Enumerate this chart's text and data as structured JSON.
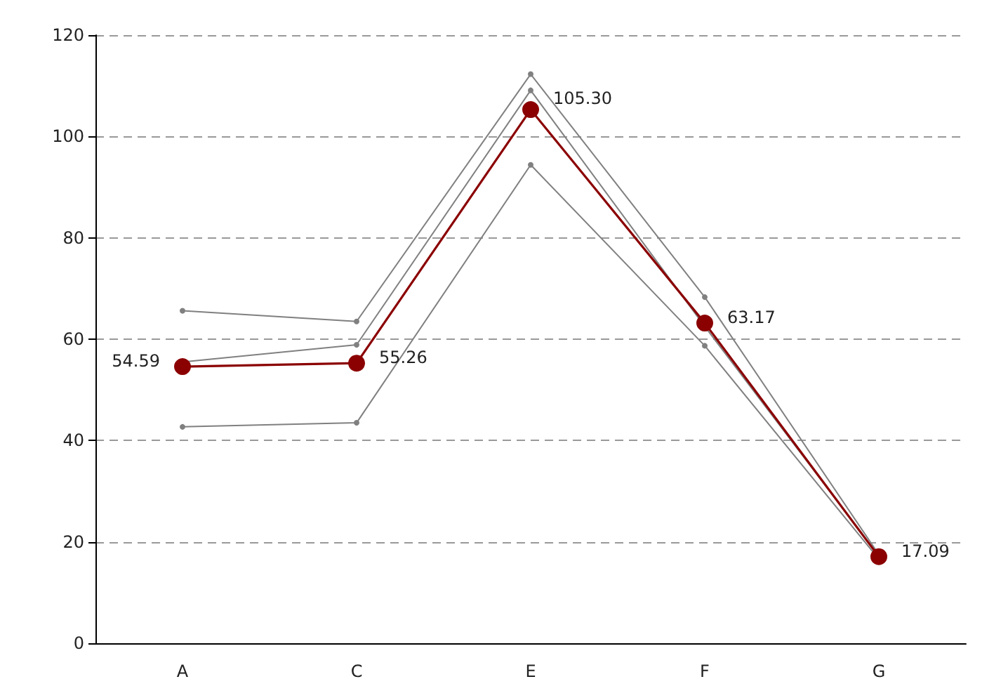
{
  "chart_data": {
    "type": "line",
    "categories": [
      "A",
      "C",
      "E",
      "F",
      "G"
    ],
    "series": [
      {
        "color": "#808080",
        "values": [
          65.6,
          63.5,
          112.3,
          68.3,
          17.5
        ]
      },
      {
        "color": "#808080",
        "values": [
          55.5,
          58.9,
          109.1,
          62.5,
          17.2
        ]
      },
      {
        "color": "#808080",
        "values": [
          42.7,
          43.5,
          94.4,
          58.7,
          16.6
        ]
      },
      {
        "color": "#8b0000",
        "values": [
          54.59,
          55.26,
          105.3,
          63.17,
          17.09
        ],
        "value_labels": [
          "54.59",
          "55.26",
          "105.30",
          "63.17",
          "17.09"
        ]
      }
    ],
    "ylim": [
      0,
      120
    ],
    "yticks": [
      0,
      20,
      40,
      60,
      80,
      100,
      120
    ],
    "grid": "y",
    "marker": "circle",
    "line_style": "solid"
  }
}
